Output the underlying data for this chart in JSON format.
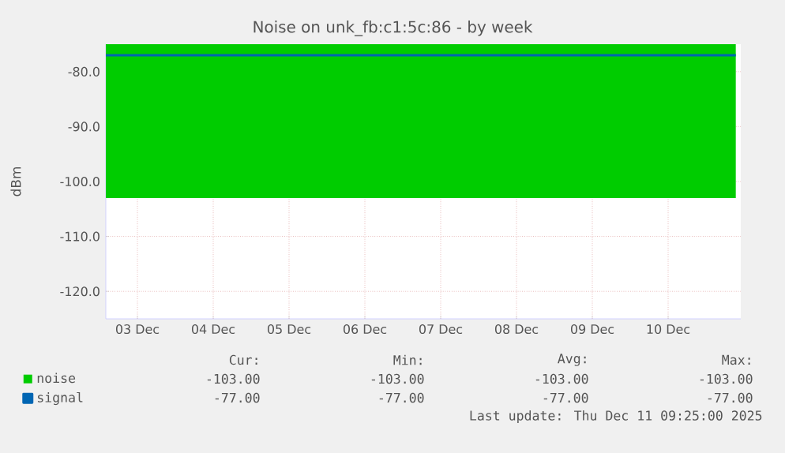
{
  "chart_data": {
    "type": "line",
    "title": "Noise on unk_fb:c1:5c:86 - by week",
    "ylabel": "dBm",
    "xlim": [
      "2025-12-03T02:00",
      "2025-12-11T11:00"
    ],
    "ylim": [
      -125,
      -75
    ],
    "xticks": [
      {
        "value": "2025-12-03T12:00",
        "label": "03 Dec"
      },
      {
        "value": "2025-12-04T12:00",
        "label": "04 Dec"
      },
      {
        "value": "2025-12-05T12:00",
        "label": "05 Dec"
      },
      {
        "value": "2025-12-06T12:00",
        "label": "06 Dec"
      },
      {
        "value": "2025-12-07T12:00",
        "label": "07 Dec"
      },
      {
        "value": "2025-12-08T12:00",
        "label": "08 Dec"
      },
      {
        "value": "2025-12-09T12:00",
        "label": "09 Dec"
      },
      {
        "value": "2025-12-10T12:00",
        "label": "10 Dec"
      }
    ],
    "yticks": [
      {
        "value": -120,
        "label": "-120.0"
      },
      {
        "value": -110,
        "label": "-110.0"
      },
      {
        "value": -100,
        "label": "-100.0"
      },
      {
        "value": -90,
        "label": "-90.0"
      },
      {
        "value": -80,
        "label": "-80.0"
      }
    ],
    "grid": true,
    "legend": "bottom",
    "series": [
      {
        "name": "noise",
        "type": "area",
        "color": "#00cc00",
        "x": [
          "2025-12-03T02:00",
          "2025-12-11T09:25"
        ],
        "values": [
          -103,
          -103
        ]
      },
      {
        "name": "signal",
        "color": "#0066b3",
        "x": [
          "2025-12-03T02:00",
          "2025-12-11T09:25"
        ],
        "values": [
          -77,
          -77
        ]
      }
    ],
    "annotations": [
      "Cur:",
      "Min:",
      "Avg:",
      "Max:",
      "-103.00",
      "-103.00",
      "-103.00",
      "-103.00",
      "-77.00",
      "-77.00",
      "-77.00",
      "-77.00",
      "Last update: Thu Dec 11 09:25:00 2025"
    ]
  }
}
